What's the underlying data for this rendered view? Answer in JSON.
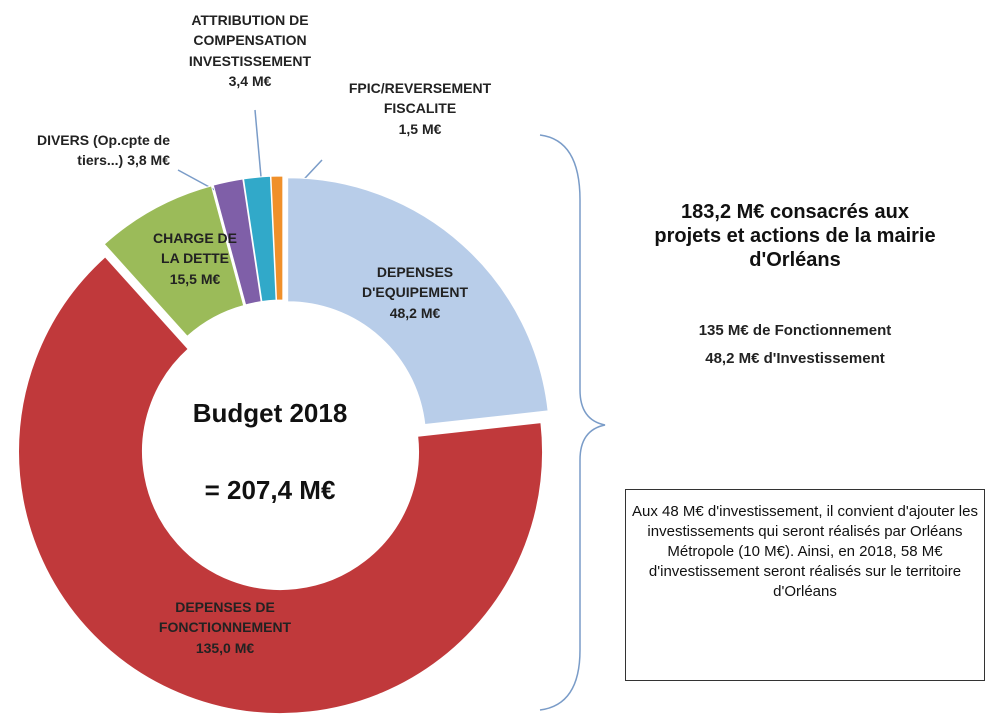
{
  "chart_data": {
    "type": "pie",
    "donut": true,
    "categories": [
      "DEPENSES D'EQUIPEMENT",
      "DEPENSES DE FONCTIONNEMENT",
      "CHARGE DE LA DETTE",
      "DIVERS (Op.cpte de tiers...)",
      "ATTRIBUTION DE COMPENSATION INVESTISSEMENT",
      "FPIC/REVERSEMENT FISCALITE"
    ],
    "values": [
      48.2,
      135.0,
      15.5,
      3.8,
      3.4,
      1.5
    ],
    "value_labels": [
      "48,2 M€",
      "135,0 M€",
      "15,5 M€",
      "3,8 M€",
      "3,4 M€",
      "1,5 M€"
    ],
    "colors": [
      "#b8cde9",
      "#c0393b",
      "#9bbb59",
      "#7f5fa8",
      "#31a9c9",
      "#f0902a"
    ],
    "center_text": [
      "Budget 2018",
      "= 207,4 M€"
    ],
    "summary": {
      "title": "183,2 M€ consacrés aux projets et actions de la mairie d'Orléans",
      "lines": [
        "135 M€ de Fonctionnement",
        "48,2 M€ d'Investissement"
      ]
    },
    "note": "Aux 48 M€ d'investissement, il convient d'ajouter les investissements qui seront réalisés par Orléans Métropole (10 M€). Ainsi, en 2018, 58 M€ d'investissement seront réalisés sur le territoire d'Orléans"
  }
}
